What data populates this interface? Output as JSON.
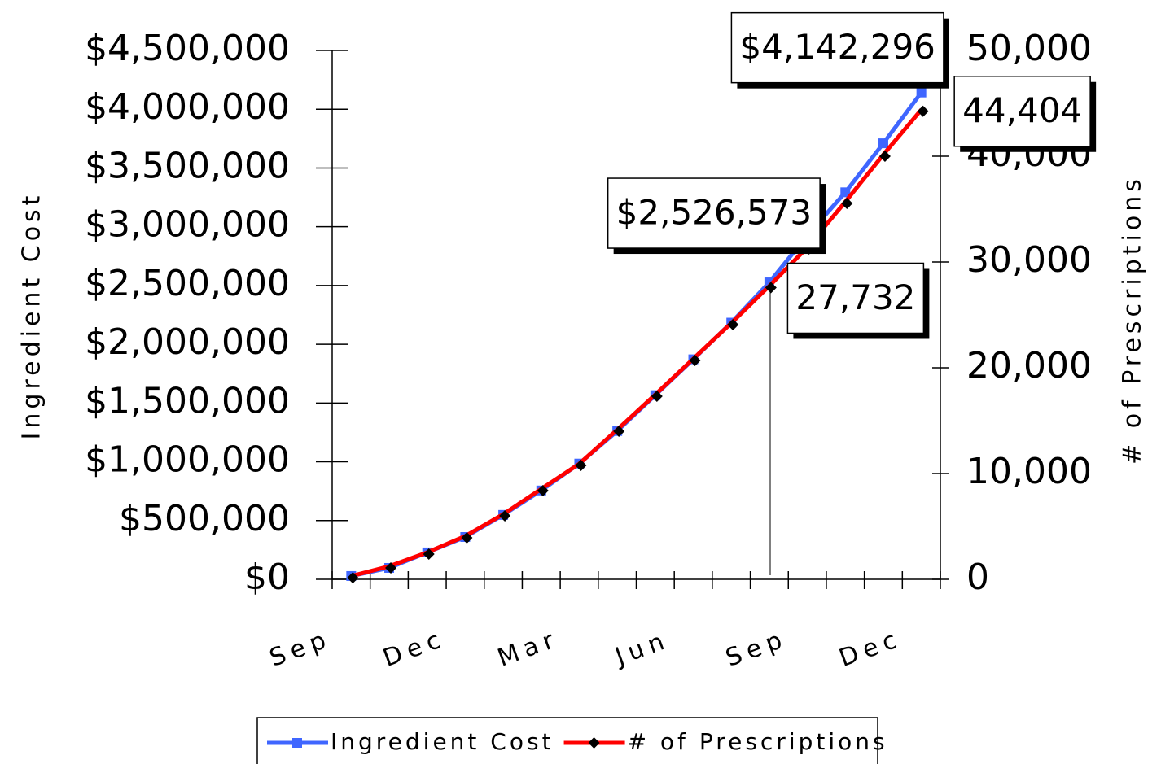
{
  "chart_data": {
    "type": "line",
    "y_axis_label": "Ingredient Cost",
    "y2_axis_label": "# of Prescriptions",
    "categories": [
      "Sep",
      null,
      null,
      "Dec",
      null,
      null,
      "Mar",
      null,
      null,
      "Jun",
      null,
      null,
      "Sep",
      null,
      null,
      "Dec"
    ],
    "series": [
      {
        "name": "Ingredient Cost",
        "color": "#3f66ff",
        "marker": "square",
        "values": [
          28000,
          97000,
          229000,
          360000,
          548000,
          756000,
          985000,
          1262000,
          1567000,
          1872000,
          2184000,
          2526573,
          2926000,
          3293000,
          3710000,
          4142296
        ],
        "value_labels": [
          null,
          null,
          null,
          null,
          null,
          null,
          null,
          null,
          null,
          null,
          null,
          "$2,526,573",
          null,
          null,
          null,
          "$4,142,296"
        ]
      },
      {
        "name": "# of Prescriptions",
        "color": "#ff0000",
        "marker": "diamond",
        "axis": "y2",
        "values": [
          300,
          1230,
          2540,
          4080,
          6150,
          8540,
          10920,
          14150,
          17460,
          20850,
          24230,
          27732,
          31380,
          35690,
          40150,
          44404
        ],
        "value_labels": [
          null,
          null,
          null,
          null,
          null,
          null,
          null,
          null,
          null,
          null,
          null,
          "27,732",
          null,
          null,
          null,
          "44,404"
        ]
      }
    ],
    "ylim": [
      0,
      4500000
    ],
    "yticks": [
      {
        "value": 0,
        "label": "$0"
      },
      {
        "value": 500000,
        "label": "$500,000"
      },
      {
        "value": 1000000,
        "label": "$1,000,000"
      },
      {
        "value": 1500000,
        "label": "$1,500,000"
      },
      {
        "value": 2000000,
        "label": "$2,000,000"
      },
      {
        "value": 2500000,
        "label": "$2,500,000"
      },
      {
        "value": 3000000,
        "label": "$3,000,000"
      },
      {
        "value": 3500000,
        "label": "$3,500,000"
      },
      {
        "value": 4000000,
        "label": "$4,000,000"
      },
      {
        "value": 4500000,
        "label": "$4,500,000"
      }
    ],
    "y2lim": [
      0,
      50000
    ],
    "y2ticks": [
      0,
      {
        "value": 10000,
        "label": "10,000"
      },
      {
        "value": 20000,
        "label": "20,000"
      },
      {
        "value": 30000,
        "label": "30,000"
      },
      {
        "value": 40000,
        "label": "40,000"
      },
      {
        "value": 50000,
        "label": "50,000"
      }
    ],
    "grid": false,
    "legend": "bottom"
  }
}
